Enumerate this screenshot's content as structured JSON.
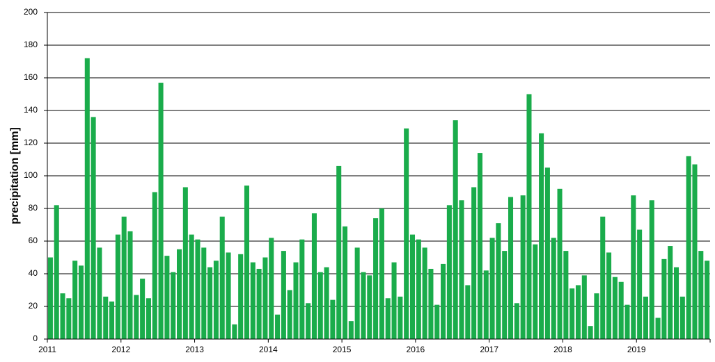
{
  "chart_data": {
    "type": "bar",
    "y_label": "precipitation [mm]",
    "categories": [
      "2011",
      null,
      null,
      null,
      null,
      null,
      null,
      null,
      null,
      null,
      null,
      null,
      "2012",
      null,
      null,
      null,
      null,
      null,
      null,
      null,
      null,
      null,
      null,
      null,
      "2013",
      null,
      null,
      null,
      null,
      null,
      null,
      null,
      null,
      null,
      null,
      null,
      "2014",
      null,
      null,
      null,
      null,
      null,
      null,
      null,
      null,
      null,
      null,
      null,
      "2015",
      null,
      null,
      null,
      null,
      null,
      null,
      null,
      null,
      null,
      null,
      null,
      "2016",
      null,
      null,
      null,
      null,
      null,
      null,
      null,
      null,
      null,
      null,
      null,
      "2017",
      null,
      null,
      null,
      null,
      null,
      null,
      null,
      null,
      null,
      null,
      null,
      "2018",
      null,
      null,
      null,
      null,
      null,
      null,
      null,
      null,
      null,
      null,
      null,
      "2019",
      null,
      null,
      null,
      null,
      null,
      null,
      null,
      null,
      null,
      null,
      null
    ],
    "values": [
      50,
      82,
      28,
      25,
      48,
      45,
      172,
      136,
      56,
      26,
      23,
      64,
      75,
      66,
      27,
      37,
      25,
      90,
      157,
      51,
      41,
      55,
      93,
      64,
      61,
      56,
      44,
      48,
      75,
      53,
      9,
      52,
      94,
      47,
      43,
      50,
      62,
      15,
      54,
      30,
      47,
      61,
      22,
      77,
      41,
      44,
      24,
      106,
      69,
      11,
      56,
      41,
      39,
      74,
      80,
      25,
      47,
      26,
      129,
      64,
      61,
      56,
      43,
      21,
      46,
      82,
      134,
      85,
      33,
      93,
      114,
      42,
      62,
      71,
      54,
      87,
      22,
      88,
      150,
      58,
      126,
      105,
      62,
      92,
      54,
      31,
      33,
      39,
      8,
      28,
      75,
      53,
      38,
      35,
      21,
      88,
      67,
      26,
      85,
      13,
      49,
      57,
      44,
      26,
      112,
      107,
      54,
      48
    ],
    "color": "#1aac4b",
    "ylim": [
      0,
      200
    ],
    "yticks": [
      0,
      20,
      40,
      60,
      80,
      100,
      120,
      140,
      160,
      180,
      200
    ],
    "grid": true
  }
}
